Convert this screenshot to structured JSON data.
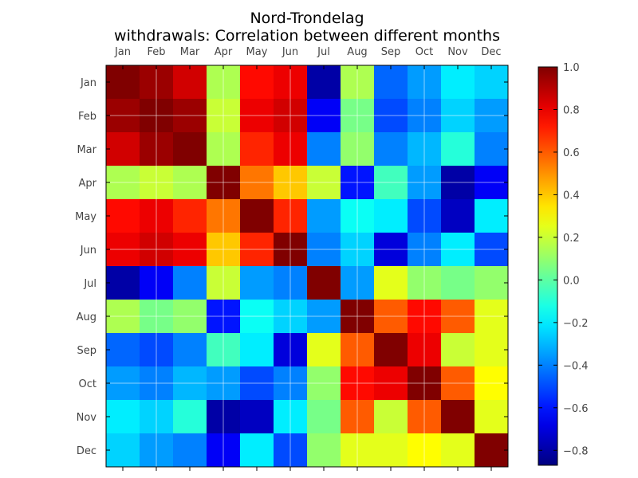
{
  "chart_data": {
    "type": "heatmap",
    "title": "Nord-Trondelag",
    "subtitle": "withdrawals: Correlation between different months",
    "x_categories": [
      "Jan",
      "Feb",
      "Mar",
      "Apr",
      "May",
      "Jun",
      "Jul",
      "Aug",
      "Sep",
      "Oct",
      "Nov",
      "Dec"
    ],
    "y_categories": [
      "Jan",
      "Feb",
      "Mar",
      "Apr",
      "May",
      "Jun",
      "Jul",
      "Aug",
      "Sep",
      "Oct",
      "Nov",
      "Dec"
    ],
    "values": [
      [
        1.0,
        0.95,
        0.85,
        0.15,
        0.75,
        0.8,
        -0.8,
        0.15,
        -0.45,
        -0.35,
        -0.2,
        -0.25
      ],
      [
        0.95,
        1.0,
        0.95,
        0.2,
        0.8,
        0.85,
        -0.65,
        0.05,
        -0.5,
        -0.4,
        -0.25,
        -0.35
      ],
      [
        0.85,
        0.95,
        1.0,
        0.15,
        0.7,
        0.8,
        -0.4,
        0.1,
        -0.4,
        -0.3,
        -0.1,
        -0.4
      ],
      [
        0.15,
        0.2,
        0.15,
        1.0,
        0.55,
        0.4,
        0.2,
        -0.6,
        -0.05,
        -0.35,
        -0.8,
        -0.65
      ],
      [
        0.75,
        0.8,
        0.7,
        0.55,
        1.0,
        0.7,
        -0.35,
        -0.15,
        -0.2,
        -0.5,
        -0.75,
        -0.2
      ],
      [
        0.8,
        0.85,
        0.8,
        0.4,
        0.7,
        1.0,
        -0.4,
        -0.25,
        -0.7,
        -0.4,
        -0.2,
        -0.5
      ],
      [
        -0.8,
        -0.65,
        -0.4,
        0.2,
        -0.35,
        -0.4,
        1.0,
        -0.35,
        0.25,
        0.1,
        0.05,
        0.1
      ],
      [
        0.15,
        0.05,
        0.1,
        -0.6,
        -0.15,
        -0.25,
        -0.35,
        1.0,
        0.6,
        0.75,
        0.6,
        0.25
      ],
      [
        -0.45,
        -0.5,
        -0.4,
        -0.05,
        -0.2,
        -0.7,
        0.25,
        0.6,
        1.0,
        0.8,
        0.2,
        0.25
      ],
      [
        -0.35,
        -0.4,
        -0.3,
        -0.35,
        -0.5,
        -0.4,
        0.1,
        0.75,
        0.8,
        1.0,
        0.6,
        0.3
      ],
      [
        -0.2,
        -0.25,
        -0.1,
        -0.8,
        -0.75,
        -0.2,
        0.05,
        0.6,
        0.2,
        0.6,
        1.0,
        0.25
      ],
      [
        -0.25,
        -0.35,
        -0.4,
        -0.65,
        -0.2,
        -0.5,
        0.1,
        0.25,
        0.25,
        0.3,
        0.25,
        1.0
      ]
    ],
    "colormap": "jet",
    "vmin": -0.87,
    "vmax": 1.0,
    "colorbar_ticks": [
      1.0,
      0.8,
      0.6,
      0.4,
      0.2,
      0.0,
      -0.2,
      -0.4,
      -0.6,
      -0.8
    ],
    "colorbar_tick_labels": [
      "1.0",
      "0.8",
      "0.6",
      "0.4",
      "0.2",
      "0.0",
      "−0.2",
      "−0.4",
      "−0.6",
      "−0.8"
    ],
    "x_axis_position": "top",
    "grid": true
  }
}
